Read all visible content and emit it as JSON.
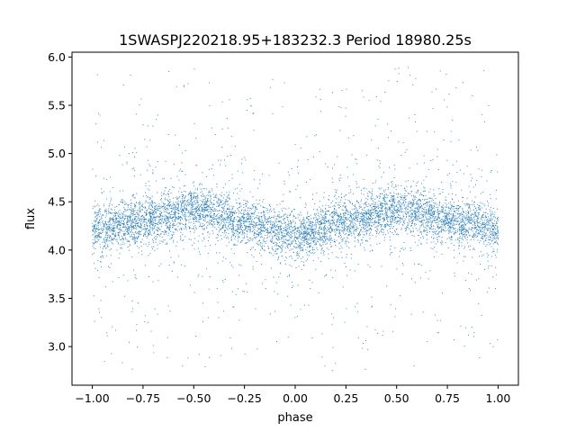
{
  "chart_data": {
    "type": "scatter",
    "title": "1SWASPJ220218.95+183232.3 Period 18980.25s",
    "xlabel": "phase",
    "ylabel": "flux",
    "xlim": [
      -1.1,
      1.1
    ],
    "ylim": [
      2.6,
      6.05
    ],
    "xticks": [
      -1.0,
      -0.75,
      -0.5,
      -0.25,
      0.0,
      0.25,
      0.5,
      0.75,
      1.0
    ],
    "xtick_labels": [
      "−1.00",
      "−0.75",
      "−0.50",
      "−0.25",
      "0.00",
      "0.25",
      "0.50",
      "0.75",
      "1.00"
    ],
    "yticks": [
      3.0,
      3.5,
      4.0,
      4.5,
      5.0,
      5.5,
      6.0
    ],
    "ytick_labels": [
      "3.0",
      "3.5",
      "4.0",
      "4.5",
      "5.0",
      "5.5",
      "6.0"
    ],
    "grid": false,
    "marker_color": "#1f77b4",
    "series": [
      {
        "phase_range": [
          -1.0,
          1.0
        ],
        "flux_range": [
          2.75,
          5.9
        ],
        "trend": {
          "phase": [
            -1.0,
            -0.75,
            -0.5,
            -0.25,
            0.0,
            0.25,
            0.5,
            0.75,
            1.0
          ],
          "flux": [
            4.22,
            4.3,
            4.42,
            4.3,
            4.15,
            4.3,
            4.42,
            4.32,
            4.22
          ]
        },
        "core_scatter": 0.12
      }
    ]
  }
}
